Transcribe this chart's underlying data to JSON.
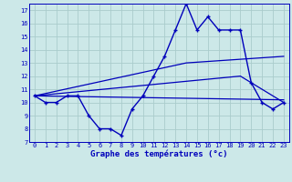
{
  "xlabel": "Graphe des températures (°c)",
  "bg_color": "#cce8e8",
  "grid_color": "#aacccc",
  "line_color": "#0000bb",
  "xlim": [
    -0.5,
    23.5
  ],
  "ylim": [
    7,
    17.5
  ],
  "xticks": [
    0,
    1,
    2,
    3,
    4,
    5,
    6,
    7,
    8,
    9,
    10,
    11,
    12,
    13,
    14,
    15,
    16,
    17,
    18,
    19,
    20,
    21,
    22,
    23
  ],
  "yticks": [
    7,
    8,
    9,
    10,
    11,
    12,
    13,
    14,
    15,
    16,
    17
  ],
  "temp_x": [
    0,
    1,
    2,
    3,
    4,
    5,
    6,
    7,
    8,
    9,
    10,
    11,
    12,
    13,
    14,
    15,
    16,
    17,
    18,
    19,
    20,
    21,
    22,
    23
  ],
  "temp_y": [
    10.5,
    10.0,
    10.0,
    10.5,
    10.5,
    9.0,
    8.0,
    8.0,
    7.5,
    9.5,
    10.5,
    12.0,
    13.5,
    15.5,
    17.5,
    15.5,
    16.5,
    15.5,
    15.5,
    15.5,
    11.5,
    10.0,
    9.5,
    10.0
  ],
  "line1_x": [
    0,
    14,
    23
  ],
  "line1_y": [
    10.5,
    13.0,
    13.5
  ],
  "line2_x": [
    0,
    19,
    23
  ],
  "line2_y": [
    10.5,
    12.0,
    10.0
  ],
  "line3_x": [
    0,
    23
  ],
  "line3_y": [
    10.5,
    10.2
  ]
}
